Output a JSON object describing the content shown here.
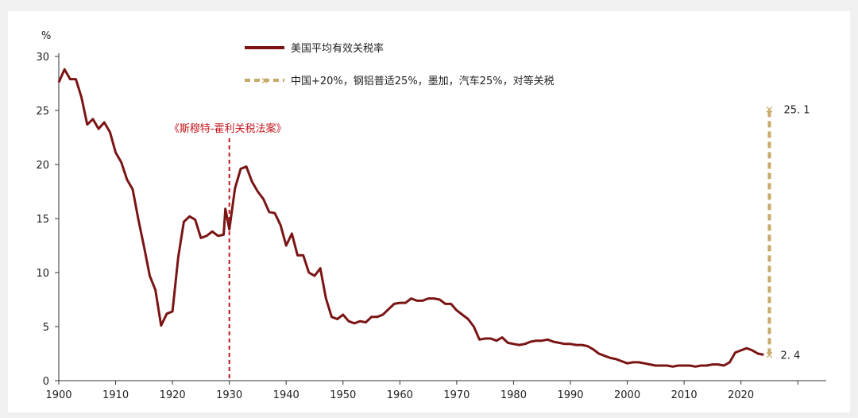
{
  "chart_data": {
    "type": "line",
    "ylabel": "%",
    "xlim": [
      1900,
      2035
    ],
    "ylim": [
      0,
      30
    ],
    "x_ticks": [
      "1900",
      "1910",
      "1920",
      "1930",
      "1940",
      "1950",
      "1960",
      "1970",
      "1980",
      "1990",
      "2000",
      "2010",
      "2020"
    ],
    "y_ticks": [
      "0",
      "5",
      "10",
      "15",
      "20",
      "25",
      "30"
    ],
    "legend_position": "top-center",
    "grid": false,
    "colors": {
      "series": "#7b1414",
      "projection": "#c8a96a",
      "event": "#c0141c"
    },
    "series": [
      {
        "name": "美国平均有效关税率",
        "style": "solid",
        "points": [
          [
            1900,
            27.6
          ],
          [
            1901,
            28.8
          ],
          [
            1902,
            27.9
          ],
          [
            1903,
            27.9
          ],
          [
            1904,
            26.2
          ],
          [
            1905,
            23.7
          ],
          [
            1906,
            24.2
          ],
          [
            1907,
            23.3
          ],
          [
            1908,
            23.9
          ],
          [
            1909,
            23.0
          ],
          [
            1910,
            21.1
          ],
          [
            1911,
            20.2
          ],
          [
            1912,
            18.6
          ],
          [
            1913,
            17.7
          ],
          [
            1914,
            14.9
          ],
          [
            1915,
            12.4
          ],
          [
            1916,
            9.7
          ],
          [
            1917,
            8.4
          ],
          [
            1918,
            5.1
          ],
          [
            1919,
            6.2
          ],
          [
            1920,
            6.4
          ],
          [
            1921,
            11.4
          ],
          [
            1922,
            14.7
          ],
          [
            1923,
            15.2
          ],
          [
            1924,
            14.9
          ],
          [
            1925,
            13.2
          ],
          [
            1926,
            13.4
          ],
          [
            1927,
            13.8
          ],
          [
            1928,
            13.4
          ],
          [
            1929,
            13.5
          ],
          [
            1929.3,
            15.9
          ],
          [
            1930,
            14.0
          ],
          [
            1931,
            17.8
          ],
          [
            1932,
            19.6
          ],
          [
            1933,
            19.8
          ],
          [
            1934,
            18.4
          ],
          [
            1935,
            17.5
          ],
          [
            1936,
            16.8
          ],
          [
            1937,
            15.6
          ],
          [
            1938,
            15.5
          ],
          [
            1939,
            14.4
          ],
          [
            1940,
            12.5
          ],
          [
            1941,
            13.6
          ],
          [
            1942,
            11.6
          ],
          [
            1943,
            11.6
          ],
          [
            1944,
            10.0
          ],
          [
            1945,
            9.7
          ],
          [
            1946,
            10.4
          ],
          [
            1947,
            7.6
          ],
          [
            1948,
            5.9
          ],
          [
            1949,
            5.7
          ],
          [
            1950,
            6.1
          ],
          [
            1951,
            5.5
          ],
          [
            1952,
            5.3
          ],
          [
            1953,
            5.5
          ],
          [
            1954,
            5.4
          ],
          [
            1955,
            5.9
          ],
          [
            1956,
            5.9
          ],
          [
            1957,
            6.1
          ],
          [
            1958,
            6.6
          ],
          [
            1959,
            7.1
          ],
          [
            1960,
            7.2
          ],
          [
            1961,
            7.2
          ],
          [
            1962,
            7.6
          ],
          [
            1963,
            7.4
          ],
          [
            1964,
            7.4
          ],
          [
            1965,
            7.6
          ],
          [
            1966,
            7.6
          ],
          [
            1967,
            7.5
          ],
          [
            1968,
            7.1
          ],
          [
            1969,
            7.1
          ],
          [
            1970,
            6.5
          ],
          [
            1971,
            6.1
          ],
          [
            1972,
            5.7
          ],
          [
            1973,
            5.0
          ],
          [
            1974,
            3.8
          ],
          [
            1975,
            3.9
          ],
          [
            1976,
            3.9
          ],
          [
            1977,
            3.7
          ],
          [
            1978,
            4.0
          ],
          [
            1979,
            3.5
          ],
          [
            1980,
            3.4
          ],
          [
            1981,
            3.3
          ],
          [
            1982,
            3.4
          ],
          [
            1983,
            3.6
          ],
          [
            1984,
            3.7
          ],
          [
            1985,
            3.7
          ],
          [
            1986,
            3.8
          ],
          [
            1987,
            3.6
          ],
          [
            1988,
            3.5
          ],
          [
            1989,
            3.4
          ],
          [
            1990,
            3.4
          ],
          [
            1991,
            3.3
          ],
          [
            1992,
            3.3
          ],
          [
            1993,
            3.2
          ],
          [
            1994,
            2.9
          ],
          [
            1995,
            2.5
          ],
          [
            1996,
            2.3
          ],
          [
            1997,
            2.1
          ],
          [
            1998,
            2.0
          ],
          [
            1999,
            1.8
          ],
          [
            2000,
            1.6
          ],
          [
            2001,
            1.7
          ],
          [
            2002,
            1.7
          ],
          [
            2003,
            1.6
          ],
          [
            2004,
            1.5
          ],
          [
            2005,
            1.4
          ],
          [
            2006,
            1.4
          ],
          [
            2007,
            1.4
          ],
          [
            2008,
            1.3
          ],
          [
            2009,
            1.4
          ],
          [
            2010,
            1.4
          ],
          [
            2011,
            1.4
          ],
          [
            2012,
            1.3
          ],
          [
            2013,
            1.4
          ],
          [
            2014,
            1.4
          ],
          [
            2015,
            1.5
          ],
          [
            2016,
            1.5
          ],
          [
            2017,
            1.4
          ],
          [
            2018,
            1.7
          ],
          [
            2019,
            2.6
          ],
          [
            2020,
            2.8
          ],
          [
            2021,
            3.0
          ],
          [
            2022,
            2.8
          ],
          [
            2023,
            2.5
          ],
          [
            2024,
            2.4
          ]
        ]
      },
      {
        "name": "中国+20%，钢铝普适25%，墨加，汽车25%，对等关税",
        "style": "dashed",
        "points": [
          [
            2025,
            2.4
          ],
          [
            2025,
            25.1
          ]
        ]
      }
    ],
    "annotations": {
      "event_label": "《斯穆特-霍利关税法案》",
      "event_year": 1930,
      "projection_high": "25. 1",
      "projection_low": "2. 4"
    }
  }
}
